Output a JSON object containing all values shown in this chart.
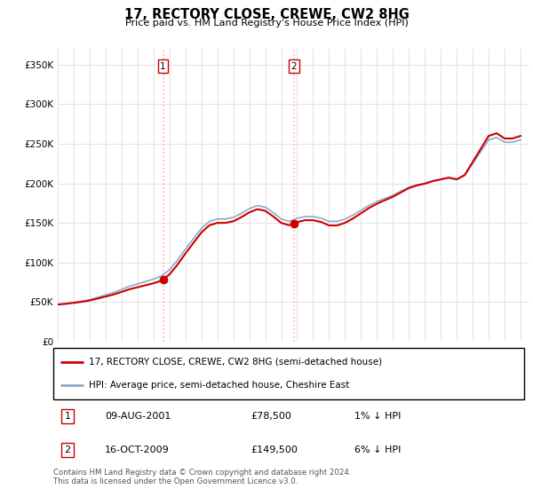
{
  "title": "17, RECTORY CLOSE, CREWE, CW2 8HG",
  "subtitle": "Price paid vs. HM Land Registry's House Price Index (HPI)",
  "ylabel_ticks": [
    "£0",
    "£50K",
    "£100K",
    "£150K",
    "£200K",
    "£250K",
    "£300K",
    "£350K"
  ],
  "ytick_values": [
    0,
    50000,
    100000,
    150000,
    200000,
    250000,
    300000,
    350000
  ],
  "ylim": [
    0,
    370000
  ],
  "xlim_start": 1995.0,
  "xlim_end": 2024.5,
  "purchase1": {
    "date_label": "09-AUG-2001",
    "price": 78500,
    "x": 2001.6,
    "label": "1"
  },
  "purchase2": {
    "date_label": "16-OCT-2009",
    "price": 149500,
    "x": 2009.8,
    "label": "2"
  },
  "vline_color": "#ffaaaa",
  "legend_line1": "17, RECTORY CLOSE, CREWE, CW2 8HG (semi-detached house)",
  "legend_line2": "HPI: Average price, semi-detached house, Cheshire East",
  "property_line_color": "#cc0000",
  "hpi_line_color": "#88aacc",
  "footer_text": "Contains HM Land Registry data © Crown copyright and database right 2024.\nThis data is licensed under the Open Government Licence v3.0.",
  "table_rows": [
    {
      "num": "1",
      "date": "09-AUG-2001",
      "price": "£78,500",
      "hpi": "1% ↓ HPI"
    },
    {
      "num": "2",
      "date": "16-OCT-2009",
      "price": "£149,500",
      "hpi": "6% ↓ HPI"
    }
  ],
  "hpi_data": {
    "years": [
      1995.0,
      1995.5,
      1996.0,
      1996.5,
      1997.0,
      1997.5,
      1998.0,
      1998.5,
      1999.0,
      1999.5,
      2000.0,
      2000.5,
      2001.0,
      2001.5,
      2002.0,
      2002.5,
      2003.0,
      2003.5,
      2004.0,
      2004.5,
      2005.0,
      2005.5,
      2006.0,
      2006.5,
      2007.0,
      2007.5,
      2008.0,
      2008.5,
      2009.0,
      2009.5,
      2010.0,
      2010.5,
      2011.0,
      2011.5,
      2012.0,
      2012.5,
      2013.0,
      2013.5,
      2014.0,
      2014.5,
      2015.0,
      2015.5,
      2016.0,
      2016.5,
      2017.0,
      2017.5,
      2018.0,
      2018.5,
      2019.0,
      2019.5,
      2020.0,
      2020.5,
      2021.0,
      2021.5,
      2022.0,
      2022.5,
      2023.0,
      2023.5,
      2024.0
    ],
    "values": [
      47000,
      48000,
      49500,
      51000,
      53000,
      56000,
      59000,
      62000,
      66000,
      70000,
      73000,
      76000,
      79000,
      83000,
      91000,
      103000,
      117000,
      130000,
      143000,
      152000,
      155000,
      155000,
      157000,
      162000,
      168000,
      172000,
      170000,
      163000,
      155000,
      152000,
      156000,
      158000,
      158000,
      156000,
      152000,
      152000,
      155000,
      160000,
      166000,
      172000,
      177000,
      181000,
      185000,
      190000,
      195000,
      198000,
      200000,
      203000,
      205000,
      207000,
      205000,
      210000,
      225000,
      240000,
      255000,
      258000,
      252000,
      252000,
      255000
    ]
  },
  "property_data": {
    "years": [
      1995.0,
      2001.6,
      2009.8,
      2024.0
    ],
    "values": [
      47000,
      78500,
      149500,
      260000
    ]
  }
}
